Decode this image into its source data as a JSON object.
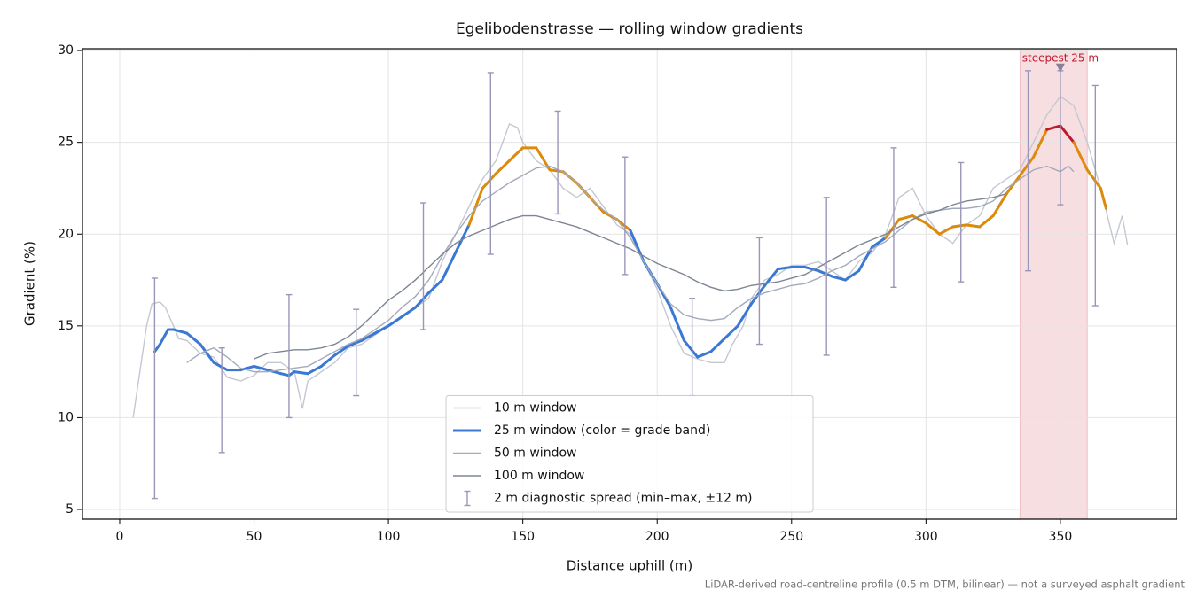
{
  "chart_data": {
    "type": "line",
    "title": "Egelibodenstrasse — rolling window gradients",
    "xlabel": "Distance uphill (m)",
    "ylabel": "Gradient (%)",
    "note": "LiDAR-derived road-centreline profile (0.5 m DTM, bilinear) — not a surveyed asphalt gradient",
    "xlim": [
      -13.85,
      393.25
    ],
    "ylim": [
      4.47,
      30.1
    ],
    "xticks": [
      0,
      50,
      100,
      150,
      200,
      250,
      300,
      350
    ],
    "yticks": [
      5,
      10,
      15,
      20,
      25,
      30
    ],
    "grid": true,
    "legend": "lower center",
    "highlight": {
      "xlim": [
        335,
        360
      ],
      "color": "#e7a0a8"
    },
    "annotation": {
      "text": "steepest 25 m",
      "x": 350,
      "y": 29,
      "color": "#c0192e"
    },
    "series": [
      {
        "name": "10 m window",
        "color": "#c3c8d2",
        "x": [
          5,
          7,
          10,
          12,
          15,
          17,
          20,
          22,
          25,
          30,
          35,
          40,
          45,
          50,
          55,
          60,
          65,
          68,
          70,
          75,
          80,
          85,
          90,
          95,
          100,
          105,
          110,
          115,
          120,
          125,
          130,
          135,
          140,
          145,
          148,
          150,
          155,
          160,
          165,
          170,
          175,
          180,
          185,
          190,
          195,
          200,
          205,
          210,
          215,
          220,
          225,
          228,
          232,
          235,
          240,
          245,
          250,
          255,
          260,
          265,
          270,
          275,
          280,
          285,
          290,
          295,
          300,
          305,
          310,
          315,
          320,
          325,
          330,
          335,
          340,
          345,
          350,
          355,
          360,
          365,
          370,
          373,
          375
        ],
        "values": [
          10.0,
          12,
          15,
          16.2,
          16.3,
          16,
          15,
          14.3,
          14.2,
          13.5,
          13.3,
          12.2,
          12.0,
          12.3,
          13.0,
          13.0,
          12.5,
          10.5,
          12.0,
          12.5,
          13.0,
          13.8,
          14.0,
          14.5,
          15.0,
          15.5,
          16.0,
          16.5,
          18.5,
          20.0,
          21.5,
          23.0,
          24.0,
          26.0,
          25.8,
          25.0,
          24.0,
          23.5,
          22.5,
          22.0,
          22.5,
          21.5,
          20.5,
          20.0,
          18.5,
          17.0,
          15.0,
          13.5,
          13.2,
          13.0,
          13.0,
          14.0,
          15.0,
          16.5,
          17.5,
          17.8,
          18.3,
          18.3,
          18.5,
          18.0,
          17.5,
          18.5,
          19.0,
          20.0,
          22.0,
          22.5,
          21.0,
          20.0,
          19.5,
          20.5,
          21.0,
          22.5,
          23.0,
          23.5,
          25.0,
          26.5,
          27.5,
          27.0,
          25.0,
          22.5,
          19.5,
          21.0,
          19.4
        ]
      },
      {
        "name": "25 m window (color = grade band)",
        "color": "#3a78d4",
        "grade_bands": [
          {
            "min": 20,
            "color": "#dc8a0c"
          },
          {
            "min": 25,
            "color": "#c0192e"
          }
        ],
        "x": [
          13,
          15,
          18,
          20,
          25,
          30,
          35,
          40,
          45,
          50,
          55,
          60,
          63,
          65,
          70,
          75,
          80,
          85,
          90,
          95,
          100,
          105,
          110,
          115,
          120,
          125,
          130,
          135,
          140,
          145,
          150,
          155,
          160,
          165,
          170,
          175,
          180,
          185,
          190,
          195,
          200,
          205,
          210,
          215,
          220,
          225,
          230,
          235,
          240,
          245,
          250,
          255,
          260,
          265,
          270,
          275,
          280,
          285,
          290,
          295,
          300,
          305,
          310,
          315,
          320,
          325,
          330,
          335,
          340,
          345,
          350,
          355,
          360,
          365,
          367
        ],
        "values": [
          13.6,
          14.0,
          14.8,
          14.8,
          14.6,
          14.0,
          13.0,
          12.6,
          12.6,
          12.8,
          12.6,
          12.4,
          12.3,
          12.5,
          12.4,
          12.8,
          13.4,
          13.9,
          14.2,
          14.6,
          15.0,
          15.5,
          16.0,
          16.8,
          17.5,
          19.0,
          20.5,
          22.5,
          23.3,
          24.0,
          24.7,
          24.7,
          23.5,
          23.4,
          22.8,
          22.0,
          21.2,
          20.8,
          20.2,
          18.5,
          17.3,
          16.0,
          14.2,
          13.3,
          13.6,
          14.3,
          15.0,
          16.2,
          17.2,
          18.1,
          18.2,
          18.2,
          18.0,
          17.7,
          17.5,
          18.0,
          19.3,
          19.8,
          20.8,
          21.0,
          20.6,
          20.0,
          20.4,
          20.5,
          20.4,
          21.0,
          22.2,
          23.2,
          24.2,
          25.7,
          25.9,
          25.0,
          23.5,
          22.5,
          21.4
        ]
      },
      {
        "name": "50 m window",
        "color": "#a3aabb",
        "x": [
          25,
          30,
          35,
          40,
          45,
          50,
          55,
          60,
          65,
          70,
          75,
          80,
          85,
          90,
          95,
          100,
          105,
          110,
          115,
          120,
          125,
          130,
          135,
          140,
          145,
          150,
          155,
          160,
          165,
          170,
          175,
          180,
          185,
          190,
          195,
          200,
          205,
          210,
          215,
          220,
          225,
          230,
          235,
          240,
          245,
          250,
          255,
          260,
          265,
          270,
          275,
          280,
          285,
          290,
          295,
          300,
          305,
          310,
          315,
          320,
          325,
          330,
          335,
          340,
          345,
          350,
          353,
          355
        ],
        "values": [
          13.0,
          13.5,
          13.8,
          13.3,
          12.7,
          12.5,
          12.5,
          12.6,
          12.7,
          12.8,
          13.2,
          13.6,
          14.0,
          14.3,
          14.8,
          15.3,
          16.0,
          16.6,
          17.5,
          18.8,
          20.0,
          21.0,
          21.8,
          22.3,
          22.8,
          23.2,
          23.6,
          23.7,
          23.4,
          22.8,
          22.0,
          21.3,
          20.8,
          19.8,
          18.5,
          17.3,
          16.2,
          15.6,
          15.4,
          15.3,
          15.4,
          16.0,
          16.5,
          16.8,
          17.0,
          17.2,
          17.3,
          17.6,
          18.0,
          18.3,
          18.8,
          19.2,
          19.6,
          20.2,
          20.8,
          21.2,
          21.3,
          21.4,
          21.4,
          21.5,
          21.8,
          22.5,
          23.0,
          23.5,
          23.7,
          23.4,
          23.7,
          23.4
        ]
      },
      {
        "name": "100 m window",
        "color": "#7d8594",
        "x": [
          50,
          55,
          60,
          65,
          70,
          75,
          80,
          85,
          90,
          95,
          100,
          105,
          110,
          115,
          120,
          125,
          130,
          135,
          140,
          145,
          150,
          155,
          160,
          165,
          170,
          175,
          180,
          185,
          190,
          195,
          200,
          205,
          210,
          215,
          220,
          225,
          230,
          235,
          240,
          245,
          250,
          255,
          260,
          265,
          270,
          275,
          280,
          285,
          290,
          295,
          300,
          305,
          310,
          315,
          320,
          325,
          330
        ],
        "values": [
          13.2,
          13.5,
          13.6,
          13.7,
          13.7,
          13.8,
          14.0,
          14.4,
          15.0,
          15.7,
          16.4,
          16.9,
          17.5,
          18.2,
          18.9,
          19.5,
          19.9,
          20.2,
          20.5,
          20.8,
          21.0,
          21.0,
          20.8,
          20.6,
          20.4,
          20.1,
          19.8,
          19.5,
          19.2,
          18.8,
          18.4,
          18.1,
          17.8,
          17.4,
          17.1,
          16.9,
          17.0,
          17.2,
          17.3,
          17.4,
          17.6,
          17.8,
          18.2,
          18.6,
          19.0,
          19.4,
          19.7,
          20.0,
          20.4,
          20.8,
          21.1,
          21.3,
          21.6,
          21.8,
          21.9,
          22.0,
          22.2
        ]
      },
      {
        "name": "2 m diagnostic spread (min–max, ±12 m)",
        "type": "errorbar",
        "color": "#9a96b8",
        "x": [
          13,
          38,
          63,
          88,
          113,
          138,
          163,
          188,
          213,
          238,
          263,
          288,
          313,
          338,
          350,
          363
        ],
        "low": [
          5.6,
          8.1,
          10.0,
          11.2,
          14.8,
          18.9,
          21.1,
          17.8,
          11.2,
          14.0,
          13.4,
          17.1,
          17.4,
          18.0,
          21.6,
          16.1
        ],
        "high": [
          17.6,
          13.8,
          16.7,
          15.9,
          21.7,
          28.8,
          26.7,
          24.2,
          16.5,
          19.8,
          22.0,
          24.7,
          23.9,
          28.9,
          28.9,
          28.1
        ]
      }
    ]
  }
}
